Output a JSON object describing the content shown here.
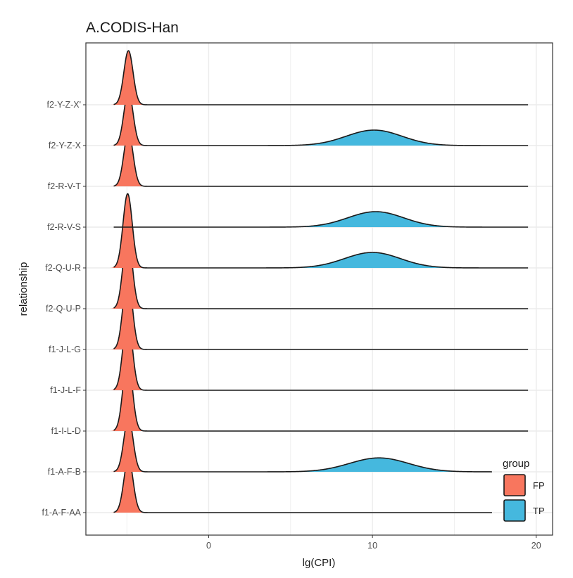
{
  "chart_data": {
    "type": "ridgeline",
    "title": "A.CODIS-Han",
    "xlabel": "lg(CPI)",
    "ylabel": "relationship",
    "xlim": [
      -7.5,
      21
    ],
    "x_ticks": [
      0,
      10,
      20
    ],
    "grid": true,
    "legend": {
      "title": "group",
      "position": "bottom-right",
      "entries": [
        {
          "name": "FP",
          "color": "#F8765E"
        },
        {
          "name": "TP",
          "color": "#45B8DE"
        }
      ]
    },
    "categories": [
      "f1-A-F-AA",
      "f1-A-F-B",
      "f1-I-L-D",
      "f1-J-L-F",
      "f1-J-L-G",
      "f2-Q-U-P",
      "f2-Q-U-R",
      "f2-R-V-S",
      "f2-R-V-T",
      "f2-Y-Z-X",
      "f2-Y-Z-X'"
    ],
    "x_range": [
      -5.8,
      19.5
    ],
    "series": [
      {
        "name": "FP",
        "peaks": [
          {
            "category": "f1-A-F-AA",
            "mean": -4.9,
            "sd": 0.28,
            "height": 1.75
          },
          {
            "category": "f1-A-F-B",
            "mean": -4.9,
            "sd": 0.28,
            "height": 1.75
          },
          {
            "category": "f1-I-L-D",
            "mean": -4.95,
            "sd": 0.28,
            "height": 2.4
          },
          {
            "category": "f1-J-L-F",
            "mean": -4.95,
            "sd": 0.28,
            "height": 2.4
          },
          {
            "category": "f1-J-L-G",
            "mean": -4.95,
            "sd": 0.28,
            "height": 2.4
          },
          {
            "category": "f2-Q-U-P",
            "mean": -4.95,
            "sd": 0.28,
            "height": 2.4
          },
          {
            "category": "f2-Q-U-R",
            "mean": -4.95,
            "sd": 0.28,
            "height": 2.4
          },
          {
            "category": "f2-R-V-T",
            "mean": -4.9,
            "sd": 0.28,
            "height": 1.75
          },
          {
            "category": "f2-Y-Z-X",
            "mean": -4.9,
            "sd": 0.28,
            "height": 1.75
          },
          {
            "category": "f2-Y-Z-X'",
            "mean": -4.9,
            "sd": 0.28,
            "height": 1.75
          }
        ]
      },
      {
        "name": "TP",
        "peaks": [
          {
            "category": "f1-A-F-B",
            "mean": 10.4,
            "sd": 1.8,
            "height": 0.45
          },
          {
            "category": "f2-Q-U-R",
            "mean": 10.0,
            "sd": 1.7,
            "height": 0.5
          },
          {
            "category": "f2-R-V-S",
            "mean": 10.2,
            "sd": 1.7,
            "height": 0.5
          },
          {
            "category": "f2-Y-Z-X",
            "mean": 10.1,
            "sd": 1.7,
            "height": 0.5
          }
        ]
      }
    ]
  }
}
